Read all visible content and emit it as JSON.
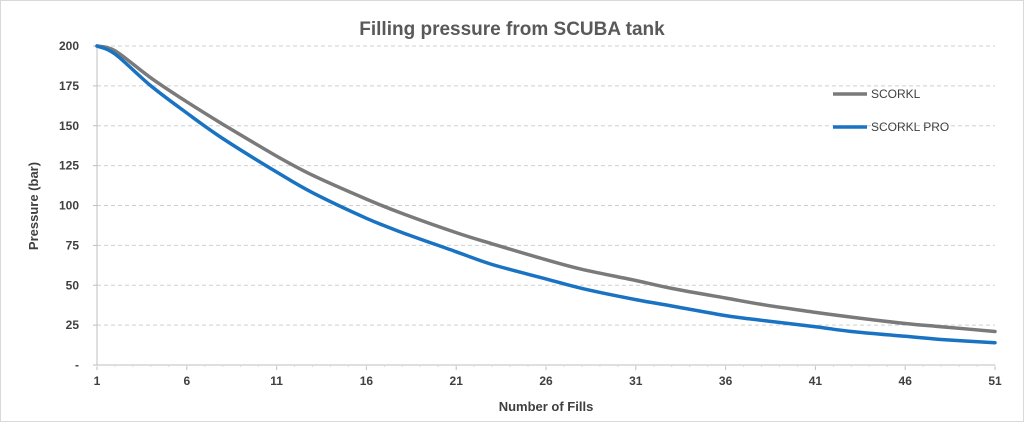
{
  "chart_data": {
    "type": "line",
    "title": "Filling pressure from SCUBA tank",
    "xlabel": "Number of Fills",
    "ylabel": "Pressure (bar)",
    "xlim": [
      1,
      51
    ],
    "ylim": [
      0,
      200
    ],
    "x_ticks": [
      "1",
      "6",
      "11",
      "16",
      "21",
      "26",
      "31",
      "36",
      "41",
      "46",
      "51"
    ],
    "y_ticks": [
      "-",
      "25",
      "50",
      "75",
      "100",
      "125",
      "150",
      "175",
      "200"
    ],
    "grid": true,
    "legend_position": "right",
    "series": [
      {
        "name": "SCORKL",
        "color": "#7a7a7a",
        "points": [
          [
            1,
            200
          ],
          [
            2,
            197
          ],
          [
            4,
            180
          ],
          [
            6,
            165
          ],
          [
            8,
            151
          ],
          [
            11,
            131
          ],
          [
            13,
            119
          ],
          [
            16,
            104
          ],
          [
            18,
            95
          ],
          [
            21,
            83
          ],
          [
            23,
            76
          ],
          [
            26,
            66
          ],
          [
            28,
            60
          ],
          [
            31,
            53
          ],
          [
            33,
            48
          ],
          [
            36,
            42
          ],
          [
            38,
            38
          ],
          [
            41,
            33
          ],
          [
            43,
            30
          ],
          [
            46,
            26
          ],
          [
            48,
            24
          ],
          [
            51,
            21
          ]
        ]
      },
      {
        "name": "SCORKL PRO",
        "color": "#1a73c2",
        "points": [
          [
            1,
            200
          ],
          [
            2,
            195
          ],
          [
            4,
            175
          ],
          [
            6,
            158
          ],
          [
            8,
            142
          ],
          [
            11,
            121
          ],
          [
            13,
            108
          ],
          [
            16,
            92
          ],
          [
            18,
            83
          ],
          [
            21,
            71
          ],
          [
            23,
            63
          ],
          [
            26,
            54
          ],
          [
            28,
            48
          ],
          [
            31,
            41
          ],
          [
            33,
            37
          ],
          [
            36,
            31
          ],
          [
            38,
            28
          ],
          [
            41,
            24
          ],
          [
            43,
            21
          ],
          [
            46,
            18
          ],
          [
            48,
            16
          ],
          [
            51,
            14
          ]
        ]
      }
    ]
  }
}
